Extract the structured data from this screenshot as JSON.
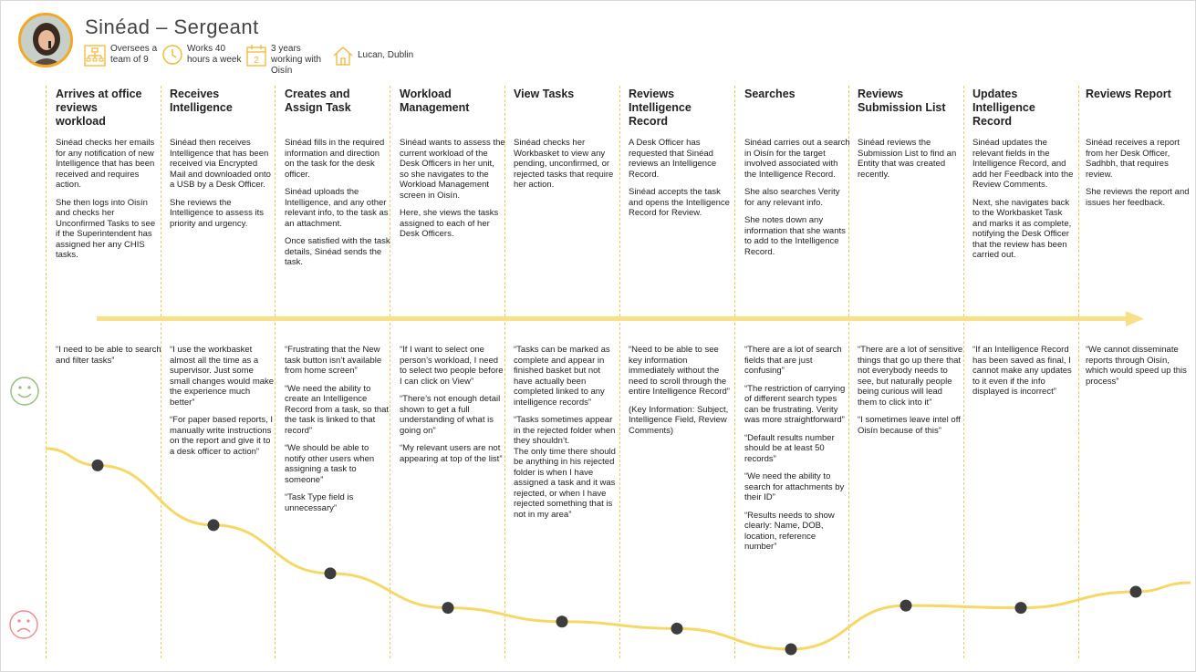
{
  "persona": {
    "name": "Sinéad – Sergeant",
    "facts": [
      {
        "icon": "org-chart-icon",
        "text": "Oversees a\nteam of 9"
      },
      {
        "icon": "clock-icon",
        "text": "Works 40\nhours a week"
      },
      {
        "icon": "calendar-icon",
        "icon_text": "2",
        "text": "3 years\nworking with\nOisín"
      },
      {
        "icon": "house-icon",
        "text": "Lucan, Dublin"
      }
    ]
  },
  "colors": {
    "accent": "#f5a623",
    "line": "#f7d867",
    "dot": "#3d3d3d",
    "happy": "#8fbf74",
    "sad": "#f08a8a"
  },
  "stages": [
    {
      "title": "Arrives at office\nreviews\nworkload",
      "description": [
        "Sinéad checks her emails for any notification of new Intelligence that has been received and requires action.",
        "She then logs into Oisín and checks her Unconfirmed Tasks to see if the Superintendent has assigned her any CHIS tasks."
      ],
      "quotes": [
        "“I need to be able to search and filter tasks”"
      ]
    },
    {
      "title": "Receives\nIntelligence",
      "description": [
        "Sinéad then receives Intelligence that has been received via Encrypted Mail and downloaded onto a USB by a Desk Officer.",
        "She reviews the Intelligence to assess its priority and urgency."
      ],
      "quotes": [
        "“I use the workbasket almost all the time as a supervisor. Just some small changes would make the experience much better”",
        "“For paper based reports, I manually write instructions on the report and give it to a desk officer to action”"
      ]
    },
    {
      "title": "Creates and\nAssign Task",
      "description": [
        "Sinéad fills in the required information and direction on the task for the desk officer.",
        "Sinéad uploads the Intelligence, and any other relevant info, to the task as an attachment.",
        "Once satisfied with the task details, Sinéad sends the task."
      ],
      "quotes": [
        "“Frustrating that the New task button isn’t available from home screen”",
        "“We need the ability to create an Intelligence Record from a task, so that the task is linked to that record”",
        "“We should be able to notify other users when assigning a task to someone”",
        "“Task Type field is unnecessary”"
      ]
    },
    {
      "title": "Workload\nManagement",
      "description": [
        "Sinéad wants to assess the current workload of the Desk Officers in her unit, so she navigates to the Workload Management screen in Oisín.",
        "Here, she views the tasks assigned to each of her Desk Officers."
      ],
      "quotes": [
        "“If I want to select one person’s workload, I need to select two people before I can click on View”",
        "“There’s not enough detail shown to get a full understanding of what is going on”",
        "“My relevant users are not appearing at top of the list”"
      ]
    },
    {
      "title": "View Tasks",
      "description": [
        "Sinéad checks her Workbasket to view any pending, unconfirmed, or rejected tasks that require her action."
      ],
      "quotes": [
        "“Tasks can be marked as complete and appear in finished basket but not have actually been completed linked to any intelligence records”",
        "“Tasks sometimes appear in the rejected folder when they shouldn’t.\nThe only time there should be anything in his rejected folder is when I have assigned a task and it was rejected, or when I have rejected something that is not in my area”"
      ]
    },
    {
      "title": "Reviews\nIntelligence\nRecord",
      "description": [
        "A Desk Officer has requested that Sinéad reviews an Intelligence Record.",
        "Sinéad accepts the task and opens the Intelligence Record for Review."
      ],
      "quotes": [
        "“Need to be able to see key information immediately without the need to scroll through the entire Intelligence Record”",
        "(Key Information: Subject, Intelligence Field, Review Comments)"
      ]
    },
    {
      "title": "Searches",
      "description": [
        "Sinéad carries out a search in Oisín for the target involved associated with the Intelligence Record.",
        "She also searches Verity for any relevant info.",
        "She notes down any information that she wants to add to the Intelligence Record."
      ],
      "quotes": [
        "“There are a lot of search fields that are just confusing”",
        "“The restriction of carrying of different search types can be frustrating. Verity was more straightforward”",
        "“Default results number should be at least 50 records”",
        "“We need the ability to search for attachments by their ID”",
        "“Results needs to show clearly: Name, DOB, location, reference number”"
      ]
    },
    {
      "title": "Reviews\nSubmission List",
      "description": [
        "Sinéad reviews the Submission List to find an Entity that was created recently."
      ],
      "quotes": [
        "“There are a lot of sensitive things that go up there that not everybody needs to see, but naturally people being curious will lead them to click into it”",
        "“I sometimes leave intel off Oisín because of this”"
      ]
    },
    {
      "title": "Updates\nIntelligence\nRecord",
      "description": [
        "Sinéad updates the relevant fields in the Intelligence Record, and add her Feedback into the Review Comments.",
        "Next, she navigates back to the Workbasket Task and marks it as complete, notifying the Desk Officer that the review has been carried out."
      ],
      "quotes": [
        "“If an Intelligence Record has been saved as final, I cannot make any updates to it even if the info displayed is incorrect”"
      ]
    },
    {
      "title": "Reviews Report",
      "description": [
        "Sinéad receives a report from her Desk Officer, Sadhbh, that requires review.",
        "She reviews the report and issues her feedback."
      ],
      "quotes": [
        "“We cannot disseminate reports through Oisín, which would speed up this process”"
      ]
    }
  ],
  "emotion_scores": [
    0.8,
    0.54,
    0.33,
    0.18,
    0.12,
    0.09,
    0.0,
    0.19,
    0.18,
    0.25
  ]
}
